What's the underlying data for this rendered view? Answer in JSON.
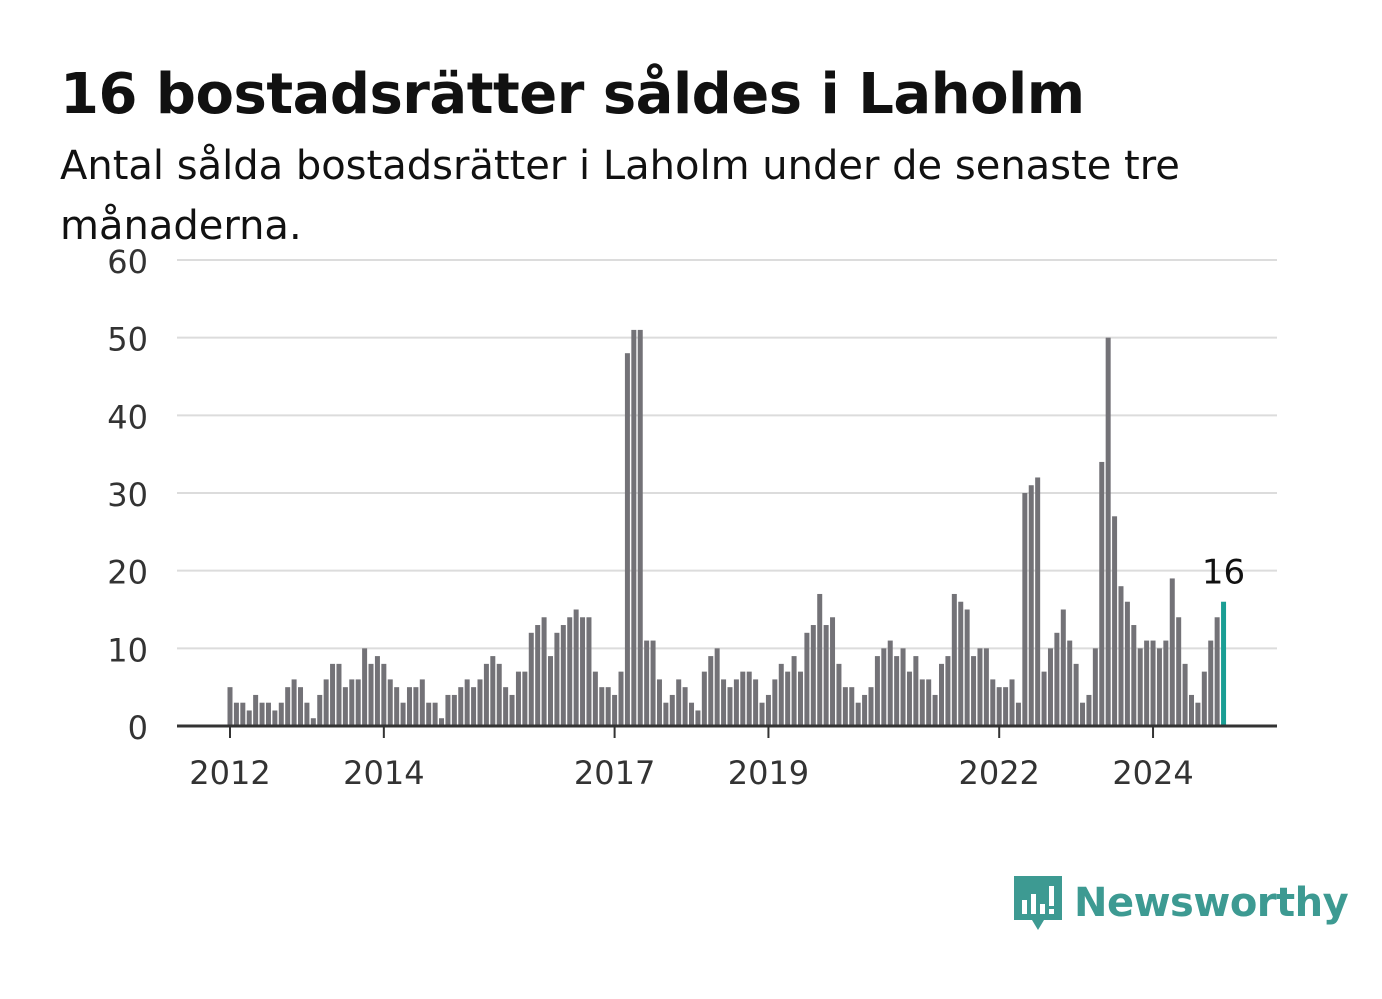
{
  "title": "16 bostadsrätter såldes i Laholm",
  "subtitle": "Antal sålda bostadsrätter i Laholm under de senaste tre månaderna.",
  "brand": {
    "name": "Newsworthy",
    "icon": "newsworthy-logo-icon",
    "color": "#3d9a92"
  },
  "chart_data": {
    "type": "bar",
    "title": "16 bostadsrätter såldes i Laholm",
    "xlabel": "",
    "ylabel": "",
    "ylim": [
      0,
      60
    ],
    "yticks": [
      0,
      10,
      20,
      30,
      40,
      50,
      60
    ],
    "xtick_labels": [
      "2012",
      "2014",
      "2017",
      "2019",
      "2022",
      "2024"
    ],
    "grid": true,
    "bar_color": "#737277",
    "highlight_color": "#1a9e94",
    "highlight_label": "16",
    "values": [
      5,
      3,
      3,
      2,
      4,
      3,
      3,
      2,
      3,
      5,
      6,
      5,
      3,
      1,
      4,
      6,
      8,
      8,
      5,
      6,
      6,
      10,
      8,
      9,
      8,
      6,
      5,
      3,
      5,
      5,
      6,
      3,
      3,
      1,
      4,
      4,
      5,
      6,
      5,
      6,
      8,
      9,
      8,
      5,
      4,
      7,
      7,
      12,
      13,
      14,
      9,
      12,
      13,
      14,
      15,
      14,
      14,
      7,
      5,
      5,
      4,
      7,
      48,
      51,
      51,
      11,
      11,
      6,
      3,
      4,
      6,
      5,
      3,
      2,
      7,
      9,
      10,
      6,
      5,
      6,
      7,
      7,
      6,
      3,
      4,
      6,
      8,
      7,
      9,
      7,
      12,
      13,
      17,
      13,
      14,
      8,
      5,
      5,
      3,
      4,
      5,
      9,
      10,
      11,
      9,
      10,
      7,
      9,
      6,
      6,
      4,
      8,
      9,
      17,
      16,
      15,
      9,
      10,
      10,
      6,
      5,
      5,
      6,
      3,
      30,
      31,
      32,
      7,
      10,
      12,
      15,
      11,
      8,
      3,
      4,
      10,
      34,
      50,
      27,
      18,
      16,
      13,
      10,
      11,
      11,
      10,
      11,
      19,
      14,
      8,
      4,
      3,
      7,
      11,
      14,
      16
    ]
  }
}
